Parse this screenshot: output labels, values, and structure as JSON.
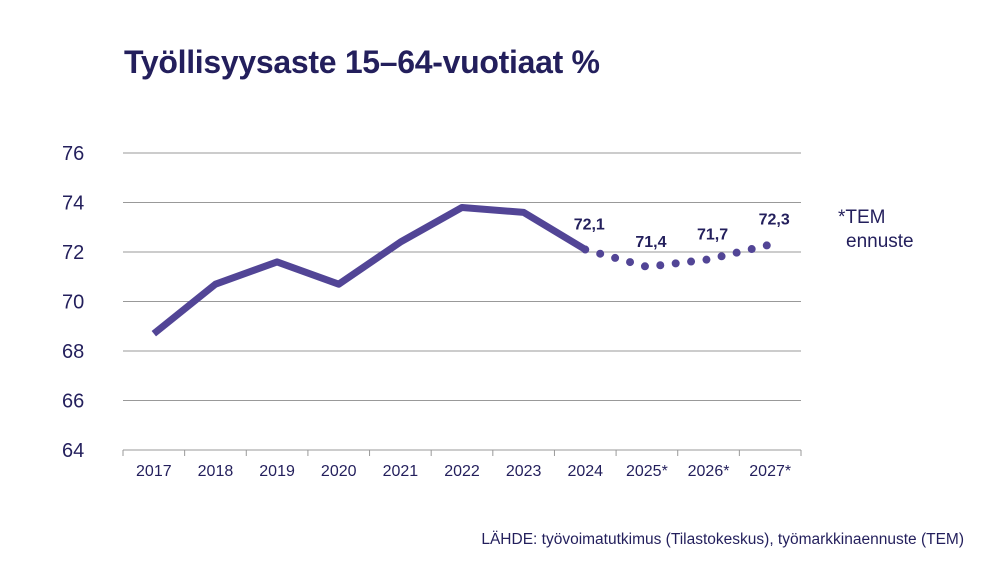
{
  "chart_data": {
    "type": "line",
    "title": "Työllisyysaste 15–64-vuotiaat %",
    "categories": [
      "2017",
      "2018",
      "2019",
      "2020",
      "2021",
      "2022",
      "2023",
      "2024",
      "2025*",
      "2026*",
      "2027*"
    ],
    "series": [
      {
        "kind": "actual",
        "style": "solid",
        "values": [
          68.7,
          70.7,
          71.6,
          70.7,
          72.4,
          73.8,
          73.6,
          72.1,
          null,
          null,
          null
        ]
      },
      {
        "kind": "forecast",
        "style": "dotted",
        "values": [
          null,
          null,
          null,
          null,
          null,
          null,
          null,
          72.1,
          71.4,
          71.7,
          72.3
        ]
      }
    ],
    "data_labels": [
      {
        "category": "2024",
        "text": "72,1"
      },
      {
        "category": "2025*",
        "text": "71,4"
      },
      {
        "category": "2026*",
        "text": "71,7"
      },
      {
        "category": "2027*",
        "text": "72,3"
      }
    ],
    "ylim": [
      64,
      76
    ],
    "yticks": [
      64,
      66,
      68,
      70,
      72,
      74,
      76
    ],
    "grid": true,
    "line_color": "#524596",
    "text_color": "#231f5c",
    "grid_color": "#999999"
  },
  "note": {
    "line1": "*TEM",
    "line2": "ennuste"
  },
  "source": "LÄHDE: työvoimatutkimus (Tilastokeskus), työmarkkinaennuste (TEM)"
}
